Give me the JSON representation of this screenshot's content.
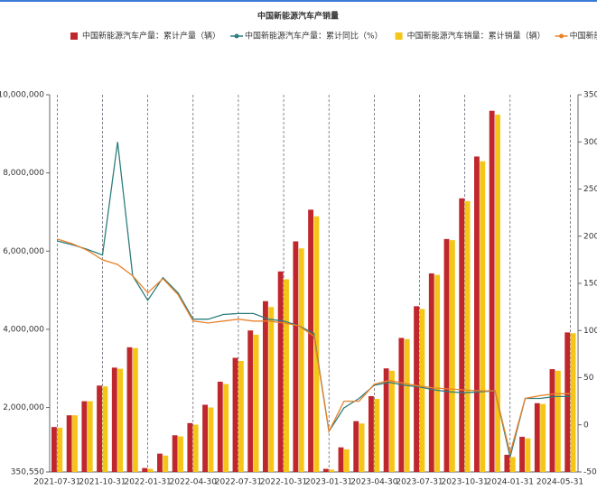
{
  "chart_data": {
    "type": "bar-line",
    "title": "中国新能源汽车产销量",
    "categories": [
      "2021-07-31",
      null,
      null,
      "2021-10-31",
      null,
      null,
      "2022-01-31",
      null,
      null,
      "2022-04-30",
      null,
      null,
      "2022-07-31",
      null,
      null,
      "2022-10-31",
      null,
      null,
      "2023-01-31",
      null,
      null,
      "2023-04-30",
      null,
      null,
      "2023-07-31",
      null,
      null,
      "2023-10-31",
      null,
      null,
      "2024-01-31",
      null,
      null,
      null,
      "2024-05-31"
    ],
    "series": [
      {
        "name": "中国新能源汽车产量：累计产量（辆）",
        "type": "bar",
        "color": "#c0272d",
        "values": [
          1500000,
          1800000,
          2160000,
          2560000,
          3020000,
          3540000,
          450000,
          820000,
          1290000,
          1600000,
          2070000,
          2660000,
          3270000,
          3970000,
          4720000,
          5480000,
          6250000,
          7060000,
          430000,
          980000,
          1650000,
          2290000,
          3000000,
          3780000,
          4590000,
          5430000,
          6310000,
          7350000,
          8420000,
          9590000,
          790000,
          1250000,
          2110000,
          2980000,
          3920000
        ]
      },
      {
        "name": "中国新能源汽车产量：累计同比（%）",
        "type": "line",
        "axis": "y2",
        "color": "#2e7d7d",
        "values": [
          195,
          191,
          186,
          180,
          300,
          158,
          132,
          156,
          140,
          112,
          112,
          117,
          118,
          118,
          112,
          110,
          105,
          97,
          -7,
          18,
          28,
          42,
          45,
          42,
          40,
          37,
          35,
          34,
          35,
          36,
          -34,
          28,
          28,
          30,
          30
        ]
      },
      {
        "name": "中国新能源汽车销量：累计销量（辆）",
        "type": "bar",
        "color": "#f5c518",
        "values": [
          1480000,
          1800000,
          2160000,
          2540000,
          2990000,
          3520000,
          430000,
          770000,
          1260000,
          1560000,
          2000000,
          2600000,
          3190000,
          3860000,
          4570000,
          5280000,
          6070000,
          6890000,
          410000,
          930000,
          1590000,
          2220000,
          2940000,
          3750000,
          4520000,
          5390000,
          6280000,
          7280000,
          8300000,
          9490000,
          730000,
          1210000,
          2090000,
          2940000,
          3900000
        ]
      },
      {
        "name": "中国新能源汽车销量：累计同比（%）",
        "type": "line",
        "axis": "y2",
        "color": "#e8822a",
        "values": [
          197,
          192,
          185,
          175,
          170,
          158,
          140,
          155,
          138,
          110,
          108,
          110,
          112,
          110,
          110,
          108,
          105,
          94,
          -7,
          25,
          25,
          43,
          47,
          44,
          41,
          39,
          38,
          37,
          36,
          36,
          -30,
          28,
          31,
          33,
          33
        ]
      }
    ],
    "ylim": [
      350550,
      10000000
    ],
    "yticks": [
      {
        "value": 350550,
        "label": "350,550"
      },
      {
        "value": 2000000,
        "label": "2,000,000"
      },
      {
        "value": 4000000,
        "label": "4,000,000"
      },
      {
        "value": 6000000,
        "label": "6,000,000"
      },
      {
        "value": 8000000,
        "label": "8,000,000"
      },
      {
        "value": 10000000,
        "label": "10,000,000"
      }
    ],
    "y2lim": [
      -50,
      350
    ],
    "y2ticks": [
      -50,
      0,
      50,
      100,
      150,
      200,
      250,
      300,
      350
    ],
    "grid": "x"
  }
}
